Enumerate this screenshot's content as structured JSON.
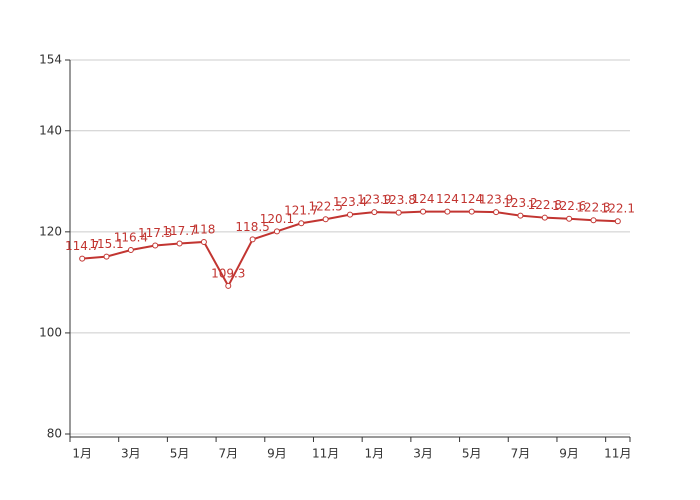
{
  "chart_data": {
    "type": "line",
    "categories": [
      "1月",
      null,
      "3月",
      null,
      "5月",
      null,
      "7月",
      null,
      "9月",
      null,
      "11月",
      null,
      "1月",
      null,
      "3月",
      null,
      "5月",
      null,
      "7月",
      null,
      "9月",
      null,
      "11月"
    ],
    "series": [
      {
        "color": "#c23531",
        "values": [
          114.7,
          115.1,
          116.4,
          117.3,
          117.7,
          118,
          109.3,
          118.5,
          120.1,
          121.7,
          122.5,
          123.4,
          123.9,
          123.8,
          124,
          124,
          124,
          123.9,
          123.2,
          122.8,
          122.6,
          122.3,
          122.1
        ]
      }
    ],
    "ylim": [
      80,
      154
    ],
    "yticks": [
      80,
      100,
      120,
      140,
      154
    ],
    "grid": true
  }
}
